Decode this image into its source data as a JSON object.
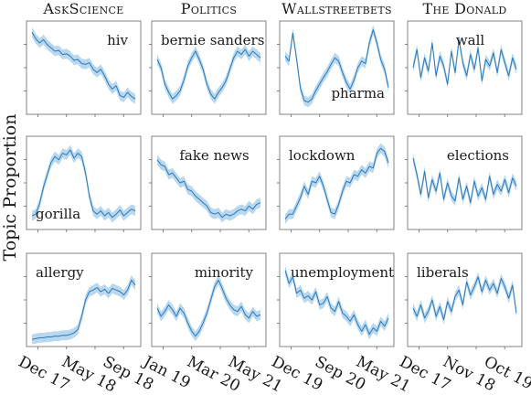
{
  "figure": {
    "ylabel": "Topic Proportion",
    "colors": {
      "line": "#2a7ab9",
      "band": "#b9d7ee"
    }
  },
  "chart_data": {
    "type": "line",
    "ylabel": "Topic Proportion",
    "grid": false,
    "columns": [
      {
        "name": "AskScience",
        "xticks": [
          "Dec 17",
          "May 18",
          "Sep 18"
        ],
        "panels": [
          {
            "topic": "hiv",
            "label_pos": "top-right",
            "values": [
              0.93,
              0.85,
              0.8,
              0.84,
              0.78,
              0.74,
              0.7,
              0.71,
              0.66,
              0.67,
              0.64,
              0.59,
              0.6,
              0.55,
              0.54,
              0.56,
              0.48,
              0.44,
              0.48,
              0.4,
              0.3,
              0.24,
              0.28,
              0.16,
              0.14,
              0.2,
              0.15,
              0.12
            ]
          },
          {
            "topic": "gorilla",
            "label_pos": "bottom-left",
            "values": [
              0.1,
              0.12,
              0.25,
              0.45,
              0.6,
              0.75,
              0.82,
              0.78,
              0.86,
              0.84,
              0.9,
              0.8,
              0.86,
              0.82,
              0.62,
              0.34,
              0.16,
              0.12,
              0.16,
              0.1,
              0.14,
              0.08,
              0.12,
              0.17,
              0.1,
              0.14,
              0.18,
              0.16
            ]
          },
          {
            "topic": "allergy",
            "label_pos": "top-left",
            "values": [
              0.02,
              0.03,
              0.04,
              0.04,
              0.05,
              0.05,
              0.06,
              0.06,
              0.07,
              0.07,
              0.08,
              0.1,
              0.14,
              0.3,
              0.5,
              0.6,
              0.62,
              0.65,
              0.6,
              0.63,
              0.58,
              0.64,
              0.62,
              0.6,
              0.56,
              0.62,
              0.74,
              0.68
            ]
          }
        ]
      },
      {
        "name": "Politics",
        "xticks": [
          "Jan 19",
          "Mar 20",
          "May 21"
        ],
        "panels": [
          {
            "topic": "bernie sanders",
            "label_pos": "top-left",
            "values": [
              0.6,
              0.5,
              0.3,
              0.2,
              0.12,
              0.16,
              0.22,
              0.35,
              0.52,
              0.62,
              0.7,
              0.6,
              0.48,
              0.3,
              0.18,
              0.12,
              0.2,
              0.26,
              0.34,
              0.48,
              0.62,
              0.7,
              0.66,
              0.72,
              0.64,
              0.7,
              0.66,
              0.62
            ]
          },
          {
            "topic": "fake news",
            "label_pos": "top-center",
            "values": [
              0.78,
              0.72,
              0.7,
              0.6,
              0.62,
              0.56,
              0.5,
              0.52,
              0.42,
              0.4,
              0.34,
              0.3,
              0.26,
              0.22,
              0.14,
              0.12,
              0.14,
              0.08,
              0.12,
              0.1,
              0.12,
              0.16,
              0.18,
              0.16,
              0.22,
              0.18,
              0.24,
              0.26
            ]
          },
          {
            "topic": "minority",
            "label_pos": "top-right",
            "values": [
              0.4,
              0.3,
              0.36,
              0.44,
              0.38,
              0.3,
              0.4,
              0.34,
              0.22,
              0.12,
              0.06,
              0.12,
              0.22,
              0.34,
              0.5,
              0.66,
              0.74,
              0.64,
              0.52,
              0.44,
              0.38,
              0.36,
              0.42,
              0.32,
              0.28,
              0.36,
              0.3,
              0.32
            ]
          }
        ]
      },
      {
        "name": "Wallstreetbets",
        "xticks": [
          "Dec 19",
          "Sep 20",
          "May 21"
        ],
        "panels": [
          {
            "topic": "pharma",
            "label_pos": "bottom-right",
            "values": [
              0.64,
              0.58,
              0.92,
              0.6,
              0.25,
              0.1,
              0.08,
              0.12,
              0.22,
              0.3,
              0.38,
              0.45,
              0.54,
              0.62,
              0.58,
              0.44,
              0.32,
              0.24,
              0.35,
              0.5,
              0.58,
              0.55,
              0.8,
              0.96,
              0.8,
              0.6,
              0.48,
              0.26
            ]
          },
          {
            "topic": "lockdown",
            "label_pos": "top-left",
            "values": [
              0.06,
              0.12,
              0.12,
              0.22,
              0.32,
              0.46,
              0.36,
              0.52,
              0.5,
              0.58,
              0.46,
              0.3,
              0.14,
              0.12,
              0.24,
              0.4,
              0.52,
              0.5,
              0.6,
              0.58,
              0.66,
              0.62,
              0.7,
              0.68,
              0.86,
              0.92,
              0.88,
              0.74
            ]
          },
          {
            "topic": "unemployment",
            "label_pos": "top-center",
            "values": [
              0.86,
              0.7,
              0.78,
              0.58,
              0.62,
              0.52,
              0.55,
              0.5,
              0.6,
              0.44,
              0.46,
              0.54,
              0.4,
              0.36,
              0.48,
              0.34,
              0.3,
              0.24,
              0.32,
              0.2,
              0.12,
              0.2,
              0.08,
              0.16,
              0.12,
              0.24,
              0.18,
              0.28
            ]
          }
        ]
      },
      {
        "name": "The Donald",
        "xticks": [
          "Dec 17",
          "Nov 18",
          "Oct 19"
        ],
        "panels": [
          {
            "topic": "wall",
            "label_pos": "top-center",
            "values": [
              0.5,
              0.72,
              0.38,
              0.62,
              0.46,
              0.8,
              0.4,
              0.64,
              0.52,
              0.3,
              0.7,
              0.44,
              0.84,
              0.56,
              0.4,
              0.66,
              0.48,
              0.74,
              0.34,
              0.6,
              0.52,
              0.68,
              0.44,
              0.72,
              0.56,
              0.4,
              0.62,
              0.48
            ]
          },
          {
            "topic": "elections",
            "label_pos": "top-right",
            "values": [
              0.8,
              0.6,
              0.36,
              0.64,
              0.32,
              0.54,
              0.4,
              0.62,
              0.3,
              0.5,
              0.34,
              0.28,
              0.56,
              0.3,
              0.46,
              0.26,
              0.52,
              0.34,
              0.44,
              0.3,
              0.58,
              0.36,
              0.48,
              0.4,
              0.54,
              0.38,
              0.56,
              0.46
            ]
          },
          {
            "topic": "liberals",
            "label_pos": "top-left",
            "values": [
              0.4,
              0.3,
              0.44,
              0.28,
              0.36,
              0.5,
              0.3,
              0.42,
              0.26,
              0.48,
              0.36,
              0.54,
              0.62,
              0.44,
              0.72,
              0.56,
              0.66,
              0.78,
              0.6,
              0.74,
              0.62,
              0.7,
              0.58,
              0.76,
              0.66,
              0.52,
              0.68,
              0.34
            ]
          }
        ]
      }
    ]
  }
}
